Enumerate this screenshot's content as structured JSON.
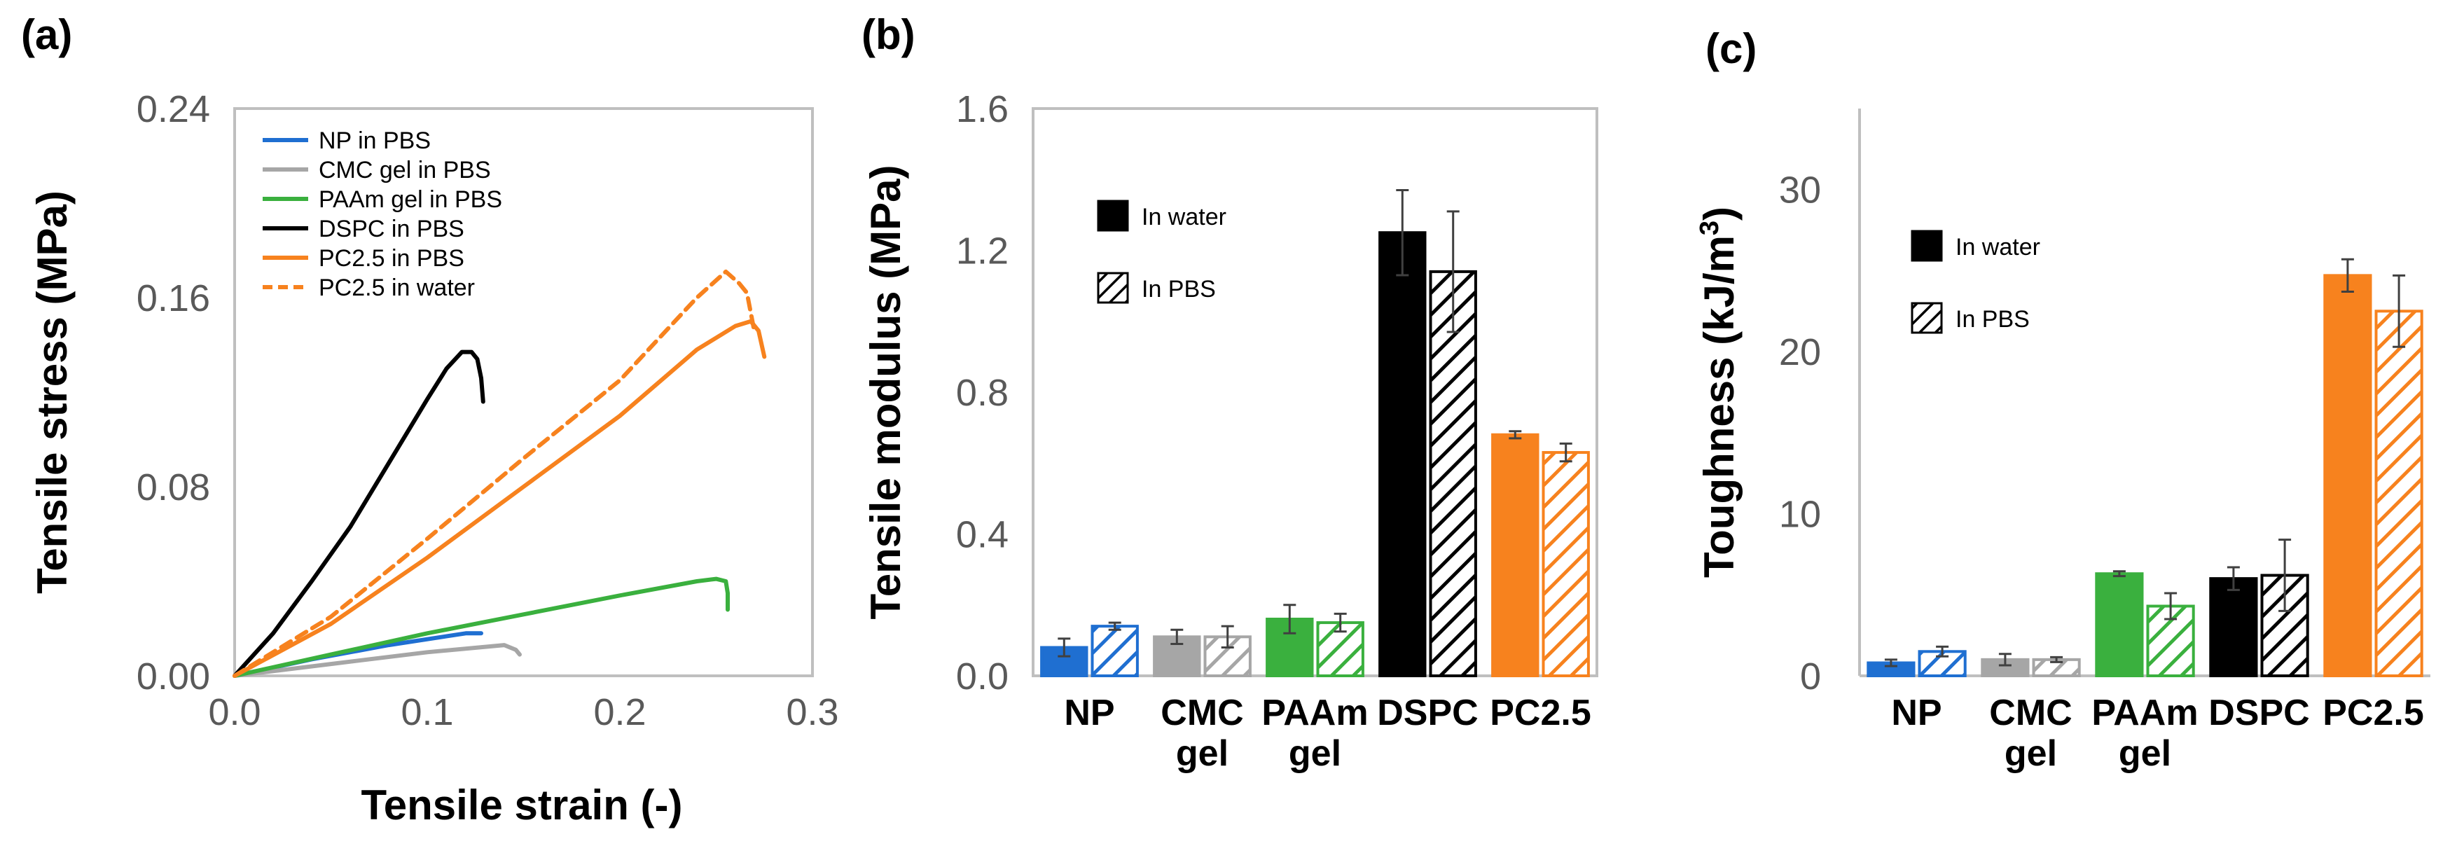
{
  "colors": {
    "NP": "#1f6fd1",
    "CMC": "#a6a6a6",
    "PAAm": "#3ab03e",
    "DSPC": "#000000",
    "PC25": "#f7821e",
    "axis": "#bfbfbf"
  },
  "chart_data": [
    {
      "panel": "(a)",
      "type": "line",
      "xlabel": "Tensile strain (-)",
      "ylabel": "Tensile stress (MPa)",
      "xlim": [
        0,
        0.3
      ],
      "ylim": [
        0,
        0.24
      ],
      "xticks": [
        "0.0",
        "0.1",
        "0.2",
        "0.3"
      ],
      "yticks": [
        "0.00",
        "0.08",
        "0.16",
        "0.24"
      ],
      "legend": "top-left",
      "series": [
        {
          "name": "NP in PBS",
          "color": "#1f6fd1",
          "dashed": false,
          "x": [
            0,
            0.04,
            0.08,
            0.12,
            0.128
          ],
          "y": [
            0,
            0.007,
            0.013,
            0.018,
            0.018
          ]
        },
        {
          "name": "CMC gel in PBS",
          "color": "#a6a6a6",
          "dashed": false,
          "x": [
            0,
            0.05,
            0.1,
            0.14,
            0.146,
            0.148
          ],
          "y": [
            0,
            0.005,
            0.01,
            0.013,
            0.011,
            0.009
          ]
        },
        {
          "name": "PAAm gel in PBS",
          "color": "#3ab03e",
          "dashed": false,
          "x": [
            0,
            0.05,
            0.1,
            0.15,
            0.2,
            0.24,
            0.25,
            0.255,
            0.256,
            0.256
          ],
          "y": [
            0,
            0.009,
            0.018,
            0.026,
            0.034,
            0.04,
            0.041,
            0.04,
            0.035,
            0.028
          ]
        },
        {
          "name": "DSPC in PBS",
          "color": "#000000",
          "dashed": false,
          "x": [
            0,
            0.02,
            0.04,
            0.06,
            0.08,
            0.1,
            0.11,
            0.118,
            0.123,
            0.126,
            0.128,
            0.129
          ],
          "y": [
            0,
            0.018,
            0.04,
            0.063,
            0.09,
            0.117,
            0.13,
            0.137,
            0.137,
            0.134,
            0.126,
            0.116
          ]
        },
        {
          "name": "PC2.5 in PBS",
          "color": "#f7821e",
          "dashed": false,
          "x": [
            0,
            0.05,
            0.1,
            0.15,
            0.2,
            0.24,
            0.26,
            0.268,
            0.272,
            0.275
          ],
          "y": [
            0,
            0.022,
            0.05,
            0.08,
            0.11,
            0.138,
            0.148,
            0.15,
            0.146,
            0.135
          ]
        },
        {
          "name": "PC2.5 in water",
          "color": "#f7821e",
          "dashed": true,
          "x": [
            0,
            0.05,
            0.1,
            0.15,
            0.2,
            0.24,
            0.255,
            0.262,
            0.266,
            0.27
          ],
          "y": [
            0,
            0.025,
            0.058,
            0.092,
            0.125,
            0.16,
            0.171,
            0.166,
            0.162,
            0.145
          ]
        }
      ]
    },
    {
      "panel": "(b)",
      "type": "bar",
      "ylabel": "Tensile modulus (MPa)",
      "ylim": [
        0,
        1.6
      ],
      "yticks": [
        "0.0",
        "0.4",
        "0.8",
        "1.2",
        "1.6"
      ],
      "categories": [
        [
          "NP"
        ],
        [
          "CMC",
          "gel"
        ],
        [
          "PAAm",
          "gel"
        ],
        [
          "DSPC"
        ],
        [
          "PC2.5"
        ]
      ],
      "category_colors": [
        "#1f6fd1",
        "#a6a6a6",
        "#3ab03e",
        "#000000",
        "#f7821e"
      ],
      "legend": "top-left",
      "series": [
        {
          "name": "In water",
          "hatched": false,
          "values": [
            0.08,
            0.11,
            0.16,
            1.25,
            0.68
          ],
          "errors": [
            0.025,
            0.02,
            0.04,
            0.12,
            0.01
          ]
        },
        {
          "name": "In PBS",
          "hatched": true,
          "values": [
            0.14,
            0.11,
            0.15,
            1.14,
            0.63
          ],
          "errors": [
            0.01,
            0.03,
            0.025,
            0.17,
            0.025
          ]
        }
      ]
    },
    {
      "panel": "(c)",
      "type": "bar",
      "ylabel": "Toughness (kJ/m³)",
      "ylabel_main": "Toughness (kJ/m",
      "ylabel_sup": "3",
      "ylabel_close": ")",
      "ylim": [
        0,
        35
      ],
      "yticks": [
        "0",
        "10",
        "20",
        "30"
      ],
      "ytick_values": [
        0,
        10,
        20,
        30
      ],
      "categories": [
        [
          "NP"
        ],
        [
          "CMC",
          "gel"
        ],
        [
          "PAAm",
          "gel"
        ],
        [
          "DSPC"
        ],
        [
          "PC2.5"
        ]
      ],
      "category_colors": [
        "#1f6fd1",
        "#a6a6a6",
        "#3ab03e",
        "#000000",
        "#f7821e"
      ],
      "legend": "top-left",
      "series": [
        {
          "name": "In water",
          "hatched": false,
          "values": [
            0.8,
            1.0,
            6.3,
            6.0,
            24.7
          ],
          "errors": [
            0.2,
            0.35,
            0.15,
            0.7,
            1.0
          ]
        },
        {
          "name": "In PBS",
          "hatched": true,
          "values": [
            1.5,
            1.0,
            4.3,
            6.2,
            22.5
          ],
          "errors": [
            0.3,
            0.15,
            0.8,
            2.2,
            2.2
          ]
        }
      ]
    }
  ]
}
